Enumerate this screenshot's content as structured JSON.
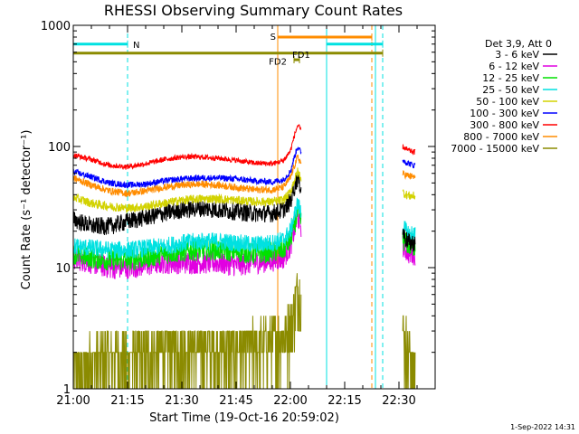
{
  "chart_data": {
    "type": "line",
    "title": "RHESSI Observing Summary Count Rates",
    "xlabel": "Start Time (19-Oct-16 20:59:02)",
    "ylabel": "Count Rate (s⁻¹ detector⁻¹)",
    "yscale": "log",
    "ylim": [
      1,
      1000
    ],
    "xlim_minutes": [
      0,
      100
    ],
    "x_ticks": [
      {
        "label": "21:00",
        "min": 0
      },
      {
        "label": "21:15",
        "min": 15
      },
      {
        "label": "21:30",
        "min": 30
      },
      {
        "label": "21:45",
        "min": 45
      },
      {
        "label": "22:00",
        "min": 60
      },
      {
        "label": "22:15",
        "min": 75
      },
      {
        "label": "22:30",
        "min": 90
      }
    ],
    "y_ticks": [
      {
        "label": "1",
        "value": 1
      },
      {
        "label": "10",
        "value": 10
      },
      {
        "label": "100",
        "value": 100
      },
      {
        "label": "1000",
        "value": 1000
      }
    ],
    "legend_title": "Det 3,9, Att 0",
    "timestamp": "1-Sep-2022 14:31",
    "data_gaps_minutes": [
      [
        63,
        91
      ],
      [
        94.5,
        100
      ]
    ],
    "series": [
      {
        "name": "3 - 6 keV",
        "color": "#000000",
        "noise": 0.1,
        "x": [
          0,
          5,
          10,
          15,
          20,
          25,
          30,
          35,
          40,
          45,
          50,
          55,
          58,
          60,
          61,
          62,
          63,
          91,
          92,
          93,
          94
        ],
        "values": [
          25,
          22,
          22,
          24,
          26,
          28,
          30,
          31,
          30,
          29,
          28,
          28,
          30,
          35,
          45,
          55,
          45,
          20,
          17,
          16,
          16
        ]
      },
      {
        "name": "6 - 12 keV",
        "color": "#e100e1",
        "noise": 0.13,
        "x": [
          0,
          5,
          10,
          15,
          20,
          25,
          30,
          35,
          40,
          45,
          50,
          55,
          58,
          60,
          61,
          62,
          63,
          91,
          92,
          93,
          94
        ],
        "values": [
          12,
          11,
          10,
          10,
          10.5,
          11,
          11,
          11,
          11,
          10.5,
          11,
          11.5,
          12,
          15,
          20,
          26,
          22,
          15,
          14,
          13,
          13
        ]
      },
      {
        "name": "12 - 25 keV",
        "color": "#00e100",
        "noise": 0.12,
        "x": [
          0,
          5,
          10,
          15,
          20,
          25,
          30,
          35,
          40,
          45,
          50,
          55,
          58,
          60,
          61,
          62,
          63,
          91,
          92,
          93,
          94
        ],
        "values": [
          13,
          12,
          11.5,
          11.5,
          12,
          13,
          13.5,
          14,
          14,
          13.5,
          13,
          13.5,
          14,
          17,
          22,
          28,
          24,
          17,
          16,
          15,
          15
        ]
      },
      {
        "name": "25 - 50 keV",
        "color": "#00e1e1",
        "noise": 0.1,
        "x": [
          0,
          5,
          10,
          15,
          20,
          25,
          30,
          35,
          40,
          45,
          50,
          55,
          58,
          60,
          61,
          62,
          63,
          91,
          92,
          93,
          94
        ],
        "values": [
          15,
          14.5,
          14,
          14,
          14.5,
          15,
          16,
          16.5,
          16.5,
          16,
          15.5,
          16,
          17,
          20,
          26,
          34,
          28,
          22,
          20,
          19,
          19
        ]
      },
      {
        "name": "50 - 100 keV",
        "color": "#d2d200",
        "noise": 0.05,
        "x": [
          0,
          5,
          10,
          15,
          20,
          25,
          30,
          35,
          40,
          45,
          50,
          55,
          58,
          60,
          61,
          62,
          63,
          91,
          92,
          93,
          94
        ],
        "values": [
          38,
          34,
          32,
          31,
          32,
          34,
          36,
          37,
          37,
          36,
          35,
          35,
          36,
          42,
          52,
          62,
          55,
          42,
          40,
          39,
          39
        ]
      },
      {
        "name": "100 - 300 keV",
        "color": "#0000ff",
        "noise": 0.035,
        "x": [
          0,
          5,
          10,
          15,
          20,
          25,
          30,
          35,
          40,
          45,
          50,
          55,
          58,
          60,
          61,
          62,
          63,
          91,
          92,
          93,
          94
        ],
        "values": [
          62,
          56,
          50,
          48,
          49,
          52,
          54,
          55,
          55,
          54,
          52,
          51,
          53,
          62,
          80,
          100,
          88,
          78,
          74,
          72,
          70
        ]
      },
      {
        "name": "300 - 800 keV",
        "color": "#ff0000",
        "noise": 0.03,
        "x": [
          0,
          5,
          10,
          15,
          20,
          25,
          30,
          35,
          40,
          45,
          50,
          55,
          58,
          60,
          61,
          62,
          63,
          91,
          92,
          93,
          94
        ],
        "values": [
          85,
          78,
          70,
          68,
          72,
          78,
          82,
          82,
          80,
          77,
          73,
          72,
          76,
          92,
          120,
          150,
          135,
          100,
          95,
          92,
          90
        ]
      },
      {
        "name": "800 - 7000 keV",
        "color": "#ff8c00",
        "noise": 0.04,
        "x": [
          0,
          5,
          10,
          15,
          20,
          25,
          30,
          35,
          40,
          45,
          50,
          55,
          58,
          60,
          61,
          62,
          63,
          91,
          92,
          93,
          94
        ],
        "values": [
          55,
          48,
          43,
          41,
          43,
          46,
          48,
          49,
          48,
          46,
          44,
          44,
          46,
          55,
          68,
          82,
          72,
          60,
          58,
          57,
          56
        ]
      },
      {
        "name": "7000 - 15000 keV",
        "color": "#8b8b00",
        "noise": 0,
        "x": [
          0,
          5,
          10,
          15,
          20,
          25,
          30,
          35,
          40,
          45,
          50,
          55,
          58,
          60,
          61,
          62,
          63,
          91,
          92,
          93,
          94
        ],
        "values": [
          1.5,
          1.8,
          2.0,
          2.0,
          2.0,
          2.2,
          2.3,
          2.4,
          2.3,
          2.3,
          2.4,
          2.6,
          2.8,
          3.5,
          5,
          7,
          6,
          3,
          2.5,
          2.0,
          1.5
        ]
      }
    ],
    "flag_bars": [
      {
        "label": "N",
        "color": "#00e1e1",
        "y_value": 700,
        "segments": [
          [
            -0.5,
            15
          ]
        ]
      },
      {
        "label": "S",
        "color": "#ff8c00",
        "y_value": 800,
        "segments": [
          [
            56.5,
            82.5
          ]
        ]
      },
      {
        "label": "",
        "color": "#00e1e1",
        "y_value": 700,
        "segments": [
          [
            70,
            85.5
          ]
        ]
      },
      {
        "label": "FD2",
        "color": "#8b8b00",
        "y_value": 590,
        "segments": [
          [
            -0.5,
            85.5
          ]
        ]
      },
      {
        "label": "FD1",
        "color": "#8b8b00",
        "y_value": 520,
        "segments": [
          [
            61,
            62.5
          ]
        ]
      }
    ],
    "vertical_markers": [
      {
        "min": -0.5,
        "color": "#00e1e1",
        "style": "solid"
      },
      {
        "min": 15,
        "color": "#00e1e1",
        "style": "dashed"
      },
      {
        "min": 56.5,
        "color": "#ff8c00",
        "style": "solid"
      },
      {
        "min": 70,
        "color": "#00e1e1",
        "style": "solid"
      },
      {
        "min": 82.5,
        "color": "#ff8c00",
        "style": "dashed"
      },
      {
        "min": 83.5,
        "color": "#00e1e1",
        "style": "solid"
      },
      {
        "min": 85.5,
        "color": "#00e1e1",
        "style": "dashed"
      }
    ]
  }
}
